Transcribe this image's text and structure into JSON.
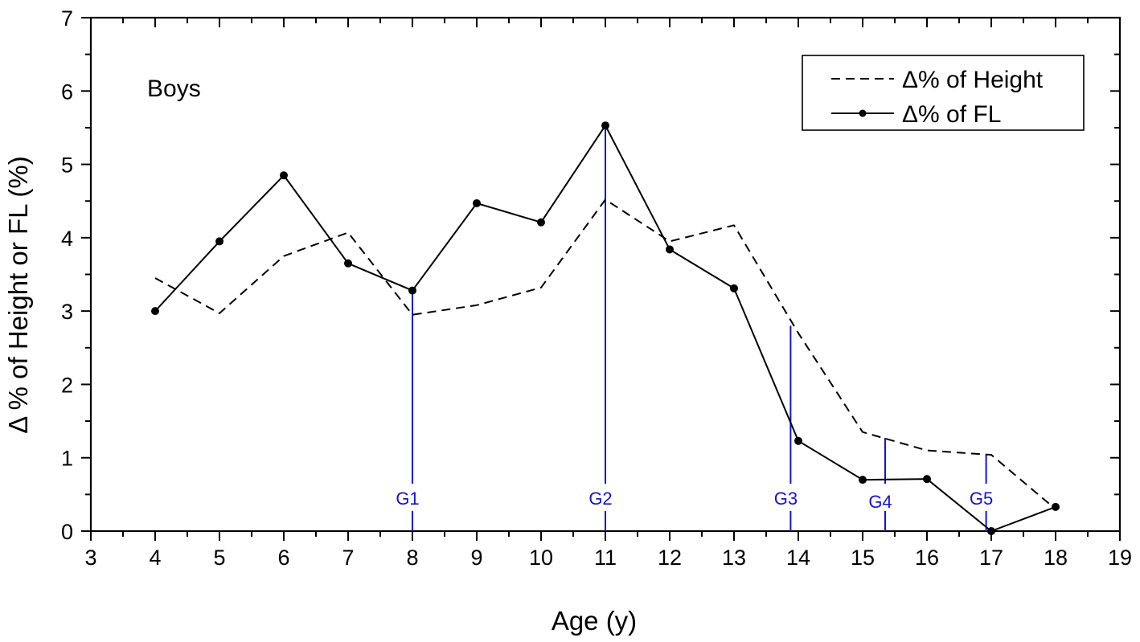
{
  "chart_data": {
    "type": "line",
    "title": "",
    "annotation": "Boys",
    "xlabel": "Age (y)",
    "ylabel": "Δ % of Height or FL (%)",
    "xlim": [
      3,
      19
    ],
    "ylim": [
      0,
      7
    ],
    "x_ticks": [
      "3",
      "4",
      "5",
      "6",
      "7",
      "8",
      "9",
      "10",
      "11",
      "12",
      "13",
      "14",
      "15",
      "16",
      "17",
      "18",
      "19"
    ],
    "y_ticks": [
      "0",
      "1",
      "2",
      "3",
      "4",
      "5",
      "6",
      "7"
    ],
    "grid": false,
    "legend_position": "top-right",
    "series": [
      {
        "name": "Δ% of Height",
        "style": "dashed",
        "markers": false,
        "color": "#000000",
        "x": [
          4,
          5,
          6,
          7,
          8,
          9,
          10,
          11,
          12,
          13,
          14,
          15,
          16,
          17,
          18
        ],
        "y": [
          3.45,
          2.97,
          3.75,
          4.07,
          2.95,
          3.08,
          3.32,
          4.52,
          3.95,
          4.17,
          2.7,
          1.35,
          1.1,
          1.04,
          0.3
        ]
      },
      {
        "name": "Δ% of FL",
        "style": "solid",
        "markers": true,
        "color": "#000000",
        "x": [
          4,
          5,
          6,
          7,
          8,
          9,
          10,
          11,
          12,
          13,
          14,
          15,
          16,
          17,
          18
        ],
        "y": [
          3.0,
          3.95,
          4.85,
          3.65,
          3.28,
          4.47,
          4.21,
          5.53,
          3.84,
          3.31,
          1.23,
          0.7,
          0.71,
          0.0,
          0.33
        ]
      }
    ],
    "growth_markers": {
      "color": "#1515c8",
      "items": [
        {
          "label": "G1",
          "x": 8.0,
          "y_top": 3.3
        },
        {
          "label": "G2",
          "x": 11.0,
          "y_top": 5.55
        },
        {
          "label": "G3",
          "x": 13.88,
          "y_top": 2.8
        },
        {
          "label": "G4",
          "x": 15.35,
          "y_top": 1.27
        },
        {
          "label": "G5",
          "x": 16.92,
          "y_top": 1.05
        }
      ]
    }
  }
}
